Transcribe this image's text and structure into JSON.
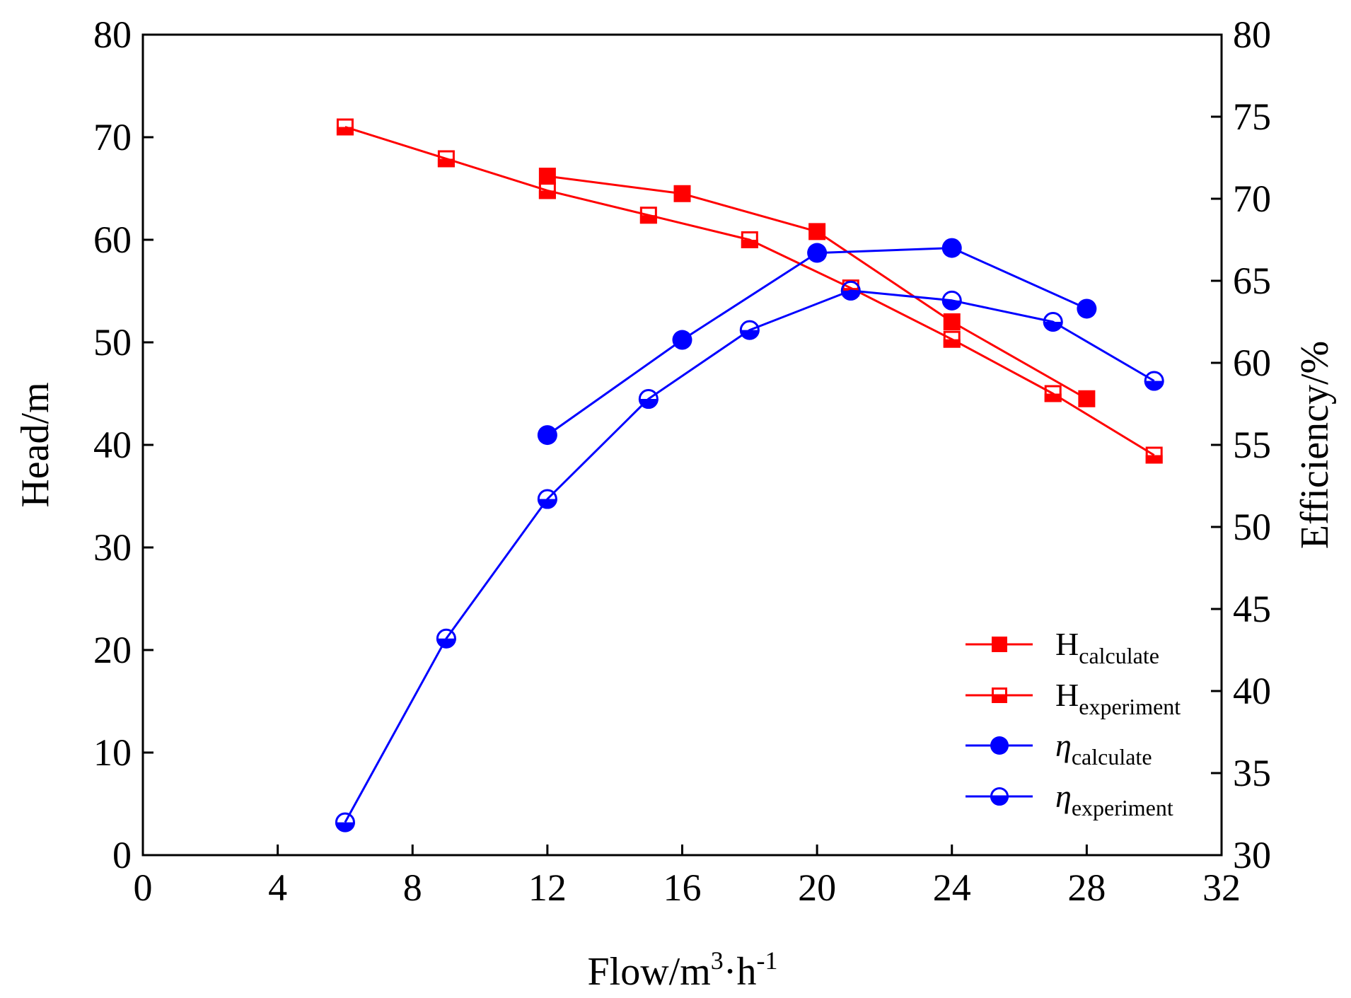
{
  "colors": {
    "red": "#ff0000",
    "blue": "#0000ff",
    "axis": "#000000"
  },
  "chart_data": {
    "type": "line",
    "x": {
      "label": "Flow/m",
      "label_sup1": "3",
      "label_mid": "·h",
      "label_sup2": "-1",
      "range": [
        0,
        32
      ],
      "ticks": [
        0,
        4,
        8,
        12,
        16,
        20,
        24,
        28,
        32
      ],
      "tick_labels": [
        "0",
        "4",
        "8",
        "12",
        "16",
        "20",
        "24",
        "28",
        "32"
      ]
    },
    "y_left": {
      "label": "Head/m",
      "range": [
        0,
        80
      ],
      "ticks": [
        0,
        10,
        20,
        30,
        40,
        50,
        60,
        70,
        80
      ],
      "tick_labels": [
        "0",
        "10",
        "20",
        "30",
        "40",
        "50",
        "60",
        "70",
        "80"
      ]
    },
    "y_right": {
      "label": "Efficiency/%",
      "range": [
        30,
        80
      ],
      "ticks": [
        30,
        35,
        40,
        45,
        50,
        55,
        60,
        65,
        70,
        75,
        80
      ],
      "tick_labels": [
        "30",
        "35",
        "40",
        "45",
        "50",
        "55",
        "60",
        "65",
        "70",
        "75",
        "80"
      ]
    },
    "grid": false,
    "legend_position": "bottom-right",
    "series": [
      {
        "name": "H_calculate",
        "legend_main": "H",
        "legend_sub": "calculate",
        "italic": false,
        "axis": "left",
        "color": "#ff0000",
        "marker": "square",
        "fill": "full",
        "points": [
          [
            12,
            66.2
          ],
          [
            16,
            64.5
          ],
          [
            20,
            60.8
          ],
          [
            24,
            52.0
          ],
          [
            28,
            44.5
          ]
        ]
      },
      {
        "name": "H_experiment",
        "legend_main": "H",
        "legend_sub": "experiment",
        "italic": false,
        "axis": "left",
        "color": "#ff0000",
        "marker": "square",
        "fill": "half",
        "points": [
          [
            6,
            71.0
          ],
          [
            9,
            67.9
          ],
          [
            12,
            64.8
          ],
          [
            15,
            62.4
          ],
          [
            18,
            60.0
          ],
          [
            21,
            55.3
          ],
          [
            24,
            50.3
          ],
          [
            27,
            45.0
          ],
          [
            30,
            39.0
          ]
        ]
      },
      {
        "name": "eta_calculate",
        "legend_main": "η",
        "legend_sub": "calculate",
        "italic": true,
        "axis": "right",
        "color": "#0000ff",
        "marker": "circle",
        "fill": "full",
        "points": [
          [
            12,
            55.6
          ],
          [
            16,
            61.4
          ],
          [
            20,
            66.7
          ],
          [
            24,
            67.0
          ],
          [
            28,
            63.3
          ]
        ]
      },
      {
        "name": "eta_experiment",
        "legend_main": "η",
        "legend_sub": "experiment",
        "italic": true,
        "axis": "right",
        "color": "#0000ff",
        "marker": "circle",
        "fill": "half",
        "points": [
          [
            6,
            32.0
          ],
          [
            9,
            43.2
          ],
          [
            12,
            51.7
          ],
          [
            15,
            57.8
          ],
          [
            18,
            62.0
          ],
          [
            21,
            64.4
          ],
          [
            24,
            63.8
          ],
          [
            27,
            62.5
          ],
          [
            30,
            58.9
          ]
        ]
      }
    ]
  }
}
